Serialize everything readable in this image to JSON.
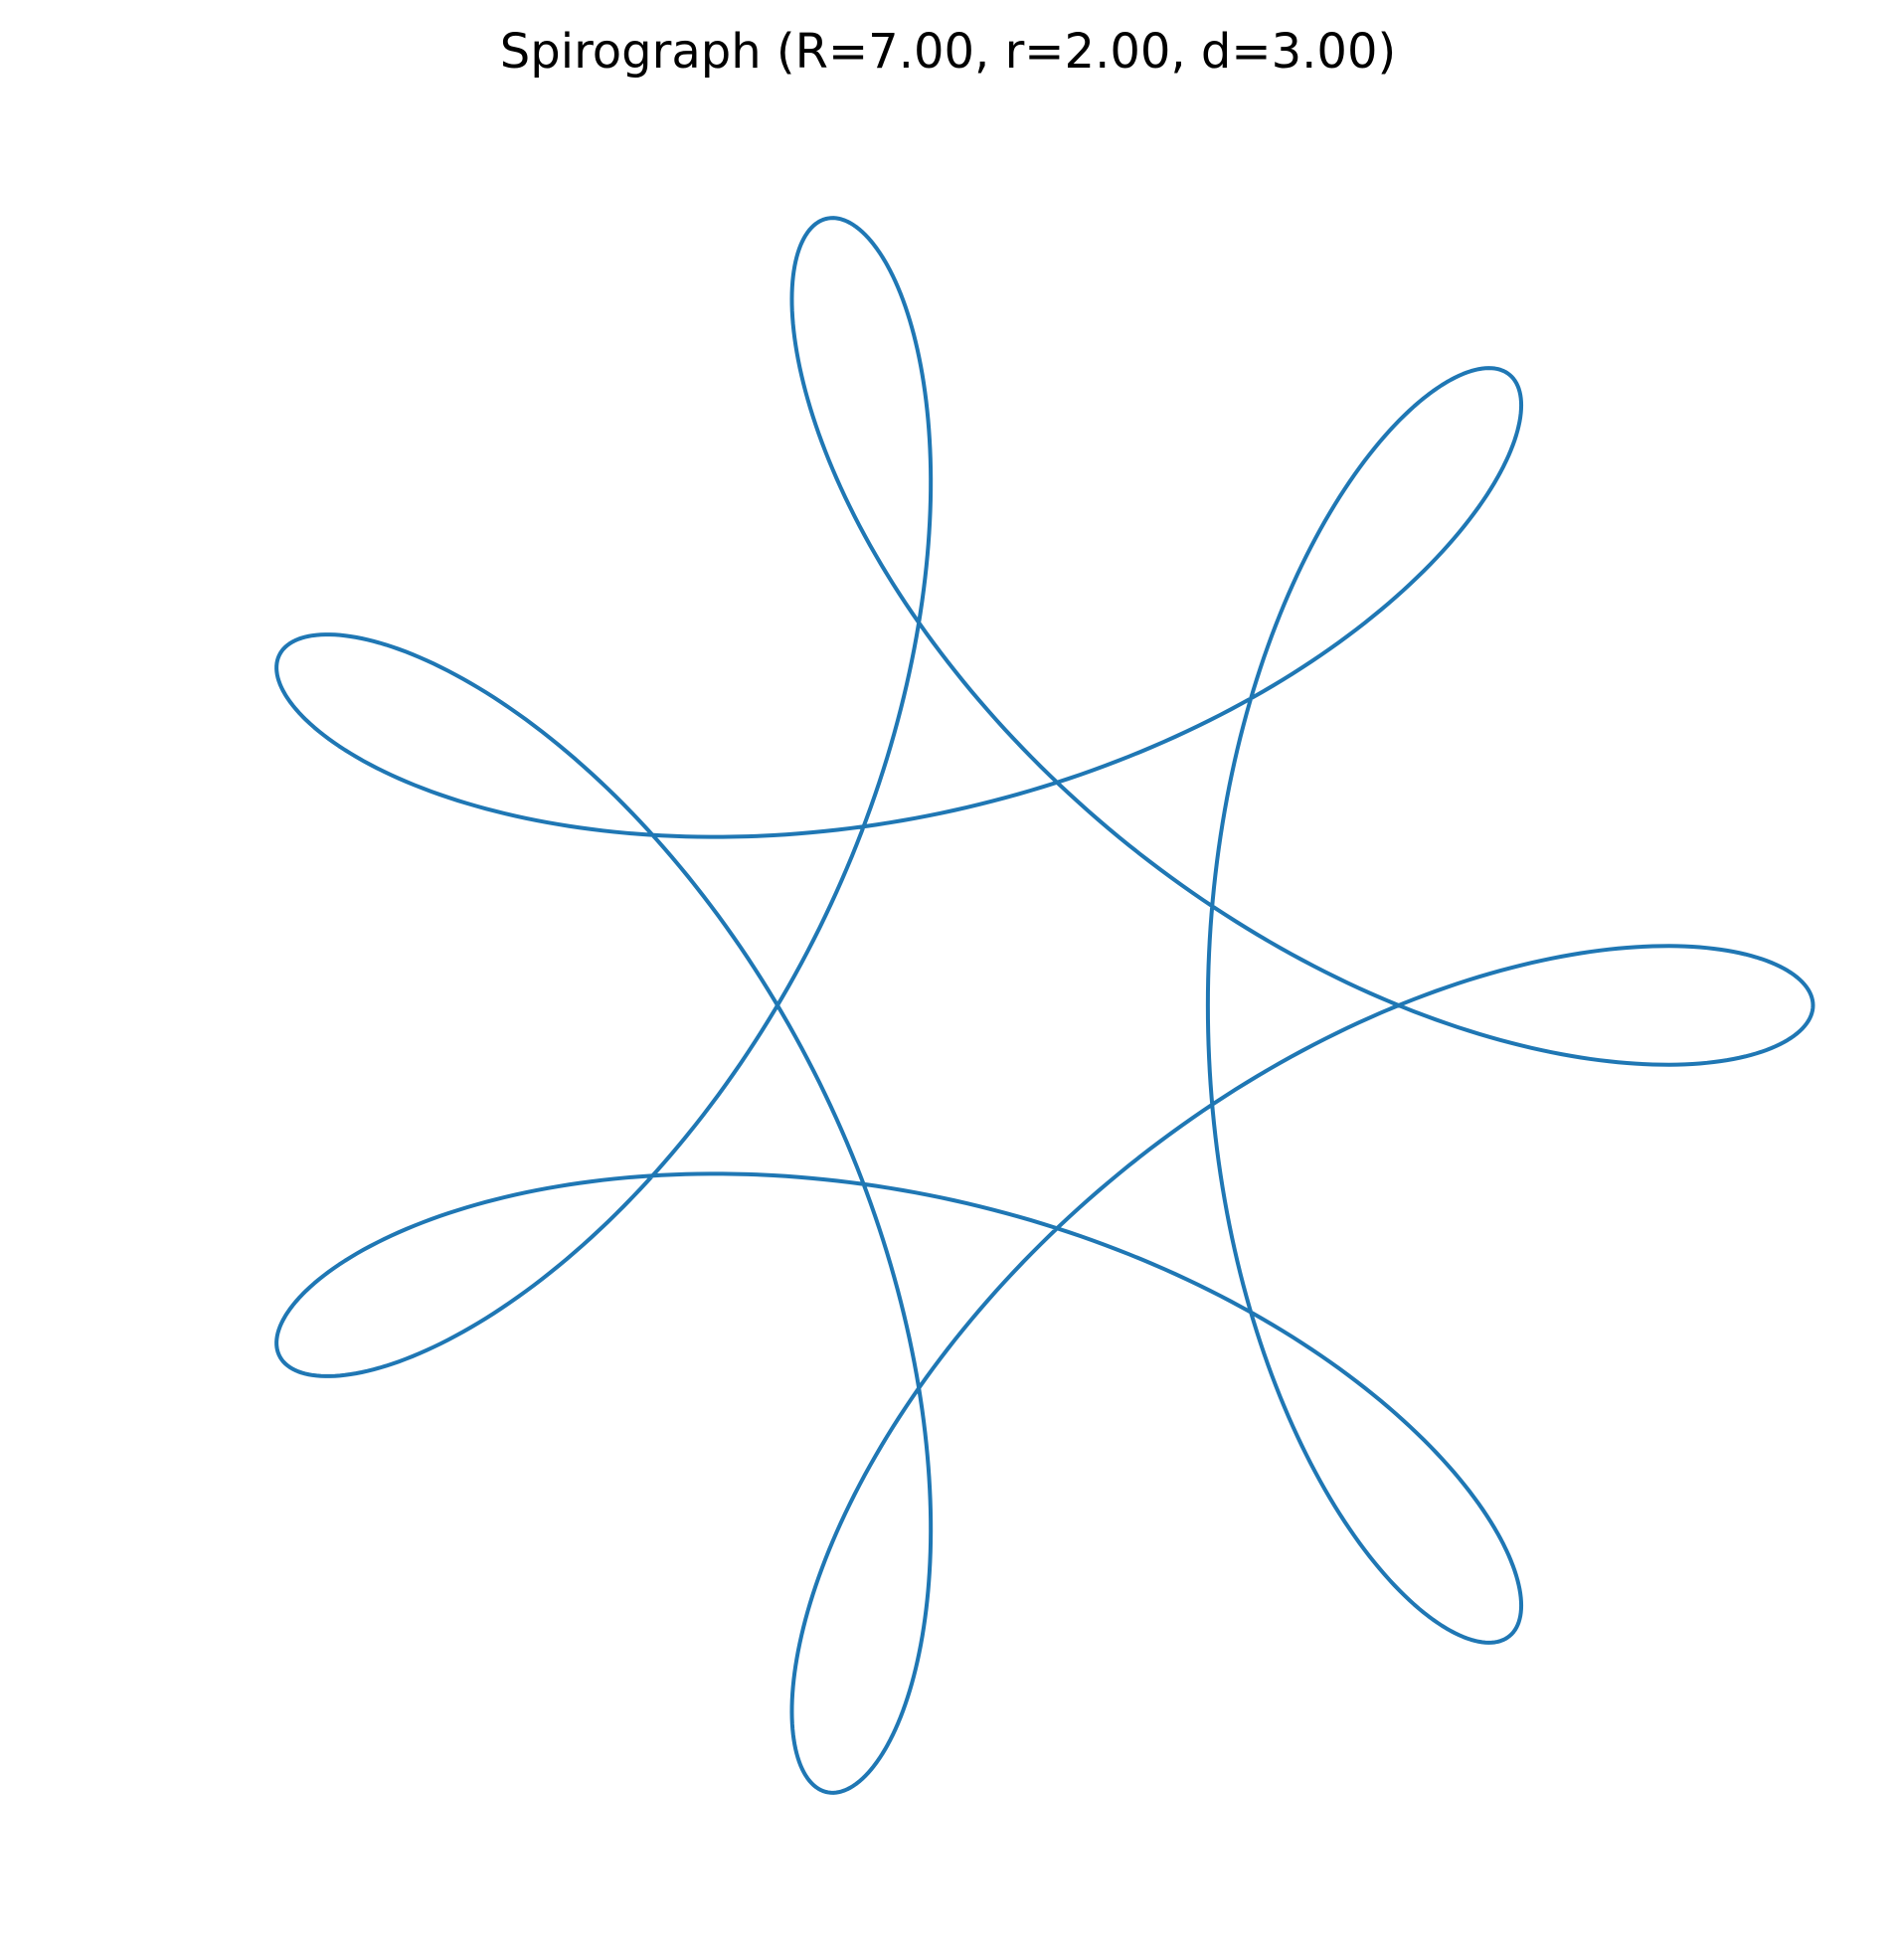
{
  "chart_data": {
    "type": "line",
    "title": "Spirograph (R=7.00, r=2.00, d=3.00)",
    "xlabel": "",
    "ylabel": "",
    "parameters": {
      "R": 7.0,
      "r": 2.0,
      "d": 3.0
    },
    "curve": "hypotrochoid",
    "t_range": [
      0,
      12.566370614359172
    ],
    "samples": 1200,
    "xlim": [
      -8,
      8
    ],
    "ylim": [
      -8,
      8
    ],
    "axes_visible": false,
    "grid": false,
    "aspect": "equal",
    "series": [
      {
        "color": "#1f77b4"
      }
    ]
  }
}
